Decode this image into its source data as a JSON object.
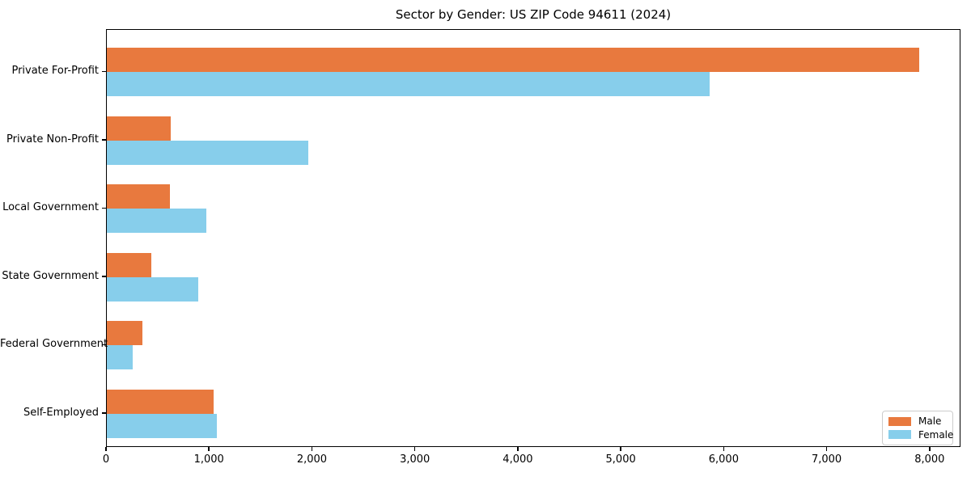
{
  "title": "Sector by Gender: US ZIP Code 94611 (2024)",
  "colors": {
    "male": "#e8793e",
    "female": "#87ceeb",
    "axis": "#000000",
    "legend_border": "#cccccc",
    "background": "#ffffff"
  },
  "legend": {
    "position": "lower-right",
    "items": [
      {
        "label": "Male",
        "color": "#e8793e"
      },
      {
        "label": "Female",
        "color": "#87ceeb"
      }
    ]
  },
  "chart_data": {
    "type": "bar",
    "orientation": "horizontal",
    "title": "Sector by Gender: US ZIP Code 94611 (2024)",
    "xlabel": "",
    "ylabel": "",
    "grid": false,
    "legend_position": "lower right",
    "categories": [
      "Private For-Profit",
      "Private Non-Profit",
      "Local Government",
      "State Government",
      "Federal Government",
      "Self-Employed"
    ],
    "series": [
      {
        "name": "Male",
        "color": "#e8793e",
        "values": [
          7890,
          620,
          615,
          435,
          345,
          1040
        ]
      },
      {
        "name": "Female",
        "color": "#87ceeb",
        "values": [
          5855,
          1960,
          970,
          885,
          250,
          1070
        ]
      }
    ],
    "xlim": [
      0,
      8300
    ],
    "x_ticks": [
      0,
      1000,
      2000,
      3000,
      4000,
      5000,
      6000,
      7000,
      8000
    ],
    "x_tick_labels": [
      "0",
      "1,000",
      "2,000",
      "3,000",
      "4,000",
      "5,000",
      "6,000",
      "7,000",
      "8,000"
    ]
  }
}
